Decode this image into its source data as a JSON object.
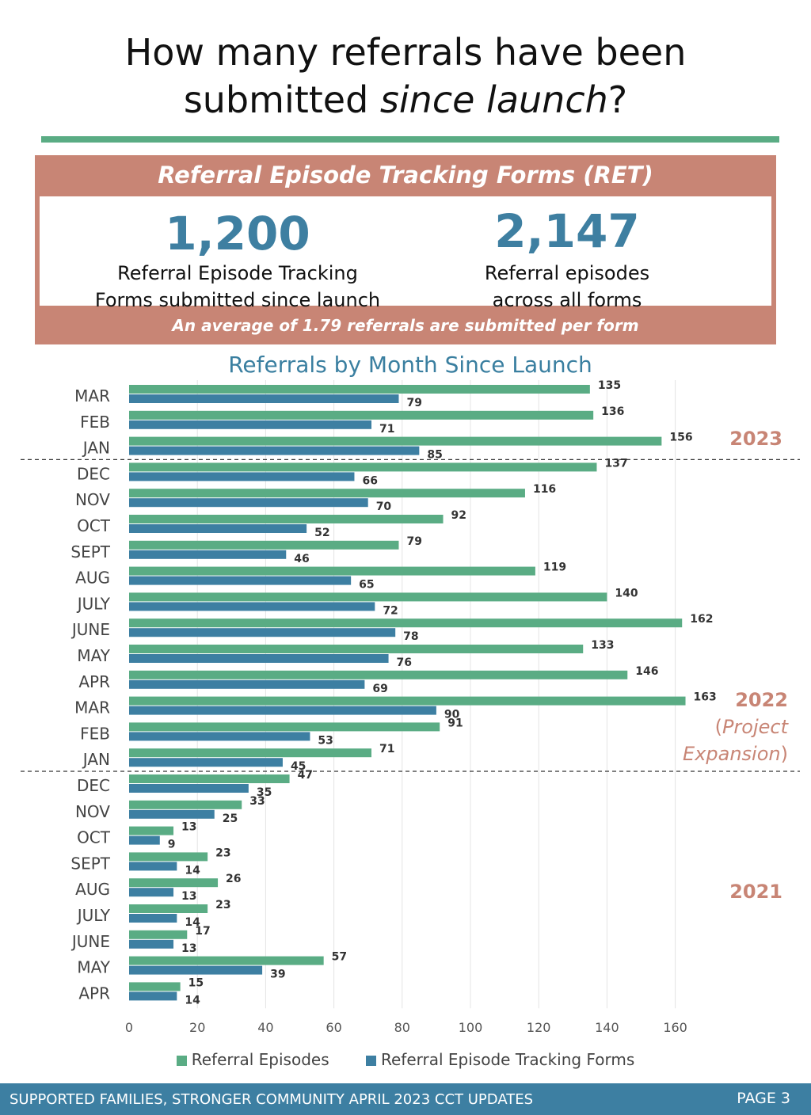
{
  "page": {
    "title_line1": "How many referrals have been",
    "title_line2_a": "submitted ",
    "title_line2_b": "since launch",
    "title_line2_c": "?"
  },
  "ret": {
    "title": "Referral Episode Tracking Forms (RET)",
    "stat1_value": "1,200",
    "stat1_line1": "Referral Episode Tracking",
    "stat1_line2": "Forms submitted since launch",
    "stat2_value": "2,147",
    "stat2_line1": "Referral episodes",
    "stat2_line2": "across all forms",
    "footer": "An average of 1.79 referrals are submitted per form"
  },
  "chart_title": "Referrals by Month Since Launch",
  "colors": {
    "episodes": "#5aac84",
    "forms": "#3d7fa2",
    "year_label": "#c88575"
  },
  "year_labels": {
    "y2023": "2023",
    "y2022": "2022",
    "y2022_sub_a": "(",
    "y2022_sub_b": "Project",
    "y2022_sub_c": "Expansion",
    "y2022_sub_d": ")",
    "y2021": "2021"
  },
  "chart_data": {
    "type": "bar",
    "orientation": "horizontal",
    "categories": [
      "MAR",
      "FEB",
      "JAN",
      "DEC",
      "NOV",
      "OCT",
      "SEPT",
      "AUG",
      "JULY",
      "JUNE",
      "MAY",
      "APR",
      "MAR",
      "FEB",
      "JAN",
      "DEC",
      "NOV",
      "OCT",
      "SEPT",
      "AUG",
      "JULY",
      "JUNE",
      "MAY",
      "APR"
    ],
    "series": [
      {
        "name": "Referral Episodes",
        "values": [
          135,
          136,
          156,
          137,
          116,
          92,
          79,
          119,
          140,
          162,
          133,
          146,
          163,
          91,
          71,
          47,
          33,
          13,
          23,
          26,
          23,
          17,
          57,
          15
        ]
      },
      {
        "name": "Referral Episode Tracking Forms",
        "values": [
          79,
          71,
          85,
          66,
          70,
          52,
          46,
          65,
          72,
          78,
          76,
          69,
          90,
          53,
          45,
          35,
          25,
          9,
          14,
          13,
          14,
          13,
          39,
          14
        ]
      }
    ],
    "xlim": [
      0,
      160
    ],
    "xticks": [
      "0",
      "20",
      "40",
      "60",
      "80",
      "100",
      "120",
      "140",
      "160"
    ],
    "grid": true,
    "legend": "bottom"
  },
  "footer": {
    "left": "SUPPORTED FAMILIES, STRONGER COMMUNITY APRIL 2023 CCT UPDATES",
    "right": "PAGE 3"
  }
}
